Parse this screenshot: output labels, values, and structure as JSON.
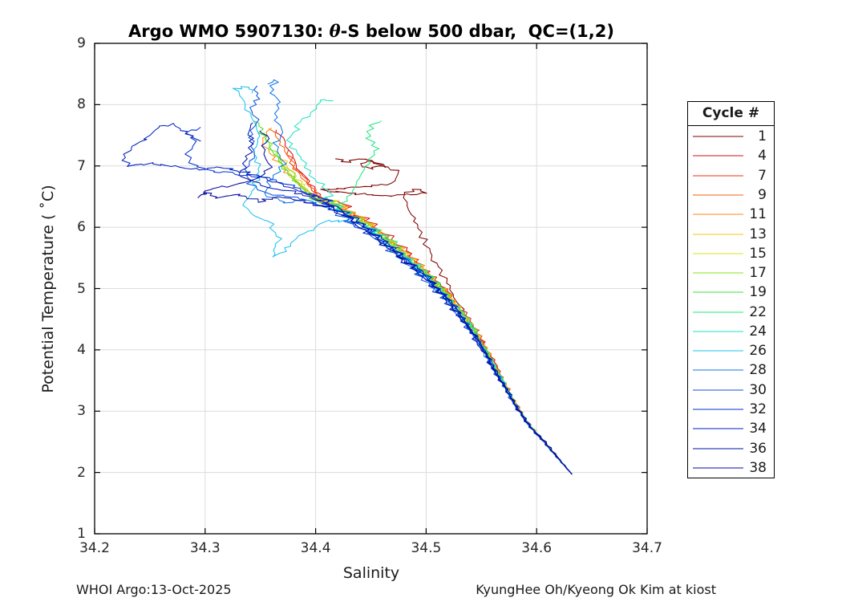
{
  "title": {
    "pre": "Argo WMO 5907130: ",
    "theta": "θ",
    "post": "-S below 500 dbar,  QC=(1,2)"
  },
  "axes": {
    "xlabel": "Salinity",
    "ylabel": "Potential Temperature ( ˚C)",
    "xtick_labels": [
      "34.2",
      "34.3",
      "34.4",
      "34.5",
      "34.6",
      "34.7"
    ],
    "ytick_labels": [
      "1",
      "2",
      "3",
      "4",
      "5",
      "6",
      "7",
      "8",
      "9"
    ]
  },
  "footer": {
    "left": "WHOI Argo:13-Oct-2025",
    "right": "KyungHee Oh/Kyeong Ok Kim at kiost"
  },
  "legend": {
    "title": "Cycle #"
  },
  "colors": {
    "grid": "#DBDBDB",
    "axis": "#000000",
    "tick_text": "#262626"
  },
  "chart_data": {
    "type": "line",
    "title": "Argo WMO 5907130: θ-S below 500 dbar, QC=(1,2)",
    "xlabel": "Salinity",
    "ylabel": "Potential Temperature (˚C)",
    "xlim": [
      34.2,
      34.7
    ],
    "ylim": [
      1,
      9
    ],
    "xticks": [
      34.2,
      34.3,
      34.4,
      34.5,
      34.6,
      34.7
    ],
    "yticks": [
      1,
      2,
      3,
      4,
      5,
      6,
      7,
      8,
      9
    ],
    "grid": true,
    "legend_title": "Cycle #",
    "legend_position": "right-outside",
    "convergence_point": {
      "salinity": 34.632,
      "theta": 1.97
    },
    "backbone_s_theta": [
      [
        34.632,
        1.97
      ],
      [
        34.621,
        2.2
      ],
      [
        34.607,
        2.5
      ],
      [
        34.592,
        2.8
      ],
      [
        34.581,
        3.1
      ],
      [
        34.572,
        3.4
      ],
      [
        34.562,
        3.7
      ],
      [
        34.553,
        4.0
      ],
      [
        34.543,
        4.3
      ],
      [
        34.531,
        4.6
      ],
      [
        34.517,
        4.9
      ],
      [
        34.501,
        5.2
      ],
      [
        34.483,
        5.5
      ],
      [
        34.462,
        5.8
      ],
      [
        34.447,
        6.0
      ],
      [
        34.43,
        6.2
      ],
      [
        34.413,
        6.4
      ],
      [
        34.396,
        6.6
      ]
    ],
    "series": [
      {
        "name": "1",
        "color": "#7F0000",
        "band_offset": 0.004,
        "tail": [
          [
            34.545,
            4.35
          ],
          [
            34.535,
            4.6
          ],
          [
            34.527,
            4.85
          ],
          [
            34.518,
            5.1
          ],
          [
            34.51,
            5.35
          ],
          [
            34.503,
            5.6
          ],
          [
            34.497,
            5.85
          ],
          [
            34.49,
            6.1
          ],
          [
            34.483,
            6.35
          ],
          [
            34.478,
            6.55
          ],
          [
            34.49,
            6.62
          ],
          [
            34.5,
            6.56
          ],
          [
            34.47,
            6.52
          ],
          [
            34.43,
            6.55
          ],
          [
            34.405,
            6.62
          ],
          [
            34.44,
            6.66
          ],
          [
            34.468,
            6.7
          ],
          [
            34.476,
            6.9
          ],
          [
            34.46,
            7.0
          ],
          [
            34.45,
            6.95
          ],
          [
            34.44,
            7.02
          ],
          [
            34.452,
            7.08
          ],
          [
            34.462,
            6.98
          ],
          [
            34.452,
            7.1
          ],
          [
            34.44,
            7.12
          ],
          [
            34.43,
            7.06
          ],
          [
            34.42,
            7.1
          ]
        ]
      },
      {
        "name": "4",
        "color": "#D6100C",
        "band_offset": 0.008,
        "tail": [
          [
            34.408,
            6.45
          ],
          [
            34.395,
            6.7
          ],
          [
            34.385,
            6.95
          ],
          [
            34.378,
            7.2
          ],
          [
            34.37,
            7.45
          ],
          [
            34.363,
            7.6
          ]
        ]
      },
      {
        "name": "7",
        "color": "#EF3212",
        "band_offset": 0.007,
        "tail": [
          [
            34.406,
            6.45
          ],
          [
            34.392,
            6.72
          ],
          [
            34.38,
            7.0
          ],
          [
            34.372,
            7.25
          ]
        ]
      },
      {
        "name": "9",
        "color": "#F95F0E",
        "band_offset": 0.006,
        "tail": [
          [
            34.405,
            6.45
          ],
          [
            34.39,
            6.75
          ],
          [
            34.378,
            7.05
          ],
          [
            34.368,
            7.35
          ],
          [
            34.36,
            7.6
          ]
        ]
      },
      {
        "name": "11",
        "color": "#FA8B13",
        "band_offset": 0.005,
        "tail": [
          [
            34.404,
            6.4
          ],
          [
            34.388,
            6.65
          ],
          [
            34.374,
            6.9
          ],
          [
            34.362,
            7.15
          ],
          [
            34.352,
            7.4
          ],
          [
            34.358,
            7.62
          ]
        ]
      },
      {
        "name": "13",
        "color": "#F8C30E",
        "band_offset": 0.004,
        "tail": [
          [
            34.402,
            6.45
          ],
          [
            34.388,
            6.7
          ],
          [
            34.376,
            6.95
          ],
          [
            34.366,
            7.18
          ]
        ]
      },
      {
        "name": "15",
        "color": "#D6E41E",
        "band_offset": 0.003,
        "tail": [
          [
            34.402,
            6.42
          ],
          [
            34.387,
            6.68
          ],
          [
            34.374,
            6.95
          ],
          [
            34.363,
            7.22
          ]
        ]
      },
      {
        "name": "17",
        "color": "#86E71A",
        "band_offset": 0.002,
        "tail": [
          [
            34.4,
            6.45
          ],
          [
            34.384,
            6.75
          ],
          [
            34.37,
            7.05
          ],
          [
            34.358,
            7.35
          ],
          [
            34.352,
            7.55
          ]
        ]
      },
      {
        "name": "19",
        "color": "#42E034",
        "band_offset": 0.001,
        "tail": [
          [
            34.4,
            6.42
          ],
          [
            34.385,
            6.72
          ],
          [
            34.37,
            7.02
          ],
          [
            34.358,
            7.32
          ],
          [
            34.35,
            7.6
          ],
          [
            34.345,
            7.75
          ]
        ]
      },
      {
        "name": "22",
        "color": "#1FE87F",
        "band_offset": 0.004,
        "tail": [
          [
            34.42,
            6.3
          ],
          [
            34.43,
            6.55
          ],
          [
            34.44,
            6.8
          ],
          [
            34.448,
            7.05
          ],
          [
            34.455,
            7.3
          ],
          [
            34.447,
            7.5
          ],
          [
            34.452,
            7.65
          ],
          [
            34.46,
            7.75
          ]
        ]
      },
      {
        "name": "24",
        "color": "#1FE4C2",
        "band_offset": 0.0,
        "tail": [
          [
            34.415,
            6.5
          ],
          [
            34.4,
            6.8
          ],
          [
            34.388,
            7.1
          ],
          [
            34.376,
            7.35
          ],
          [
            34.382,
            7.6
          ],
          [
            34.392,
            7.82
          ],
          [
            34.4,
            8.0
          ],
          [
            34.408,
            8.1
          ],
          [
            34.415,
            8.06
          ]
        ]
      },
      {
        "name": "26",
        "color": "#1BC2F0",
        "band_offset": -0.004,
        "tail": [
          [
            34.41,
            6.1
          ],
          [
            34.385,
            5.85
          ],
          [
            34.37,
            5.6
          ],
          [
            34.36,
            5.5
          ],
          [
            34.368,
            5.8
          ],
          [
            34.36,
            6.05
          ],
          [
            34.345,
            6.2
          ],
          [
            34.335,
            6.35
          ],
          [
            34.342,
            6.6
          ],
          [
            34.35,
            6.9
          ],
          [
            34.344,
            7.2
          ],
          [
            34.35,
            7.5
          ],
          [
            34.342,
            7.8
          ],
          [
            34.335,
            8.05
          ],
          [
            34.327,
            8.25
          ],
          [
            34.336,
            8.3
          ],
          [
            34.345,
            8.2
          ]
        ]
      },
      {
        "name": "28",
        "color": "#0F74E8",
        "band_offset": -0.006,
        "tail": [
          [
            34.41,
            6.3
          ],
          [
            34.39,
            6.45
          ],
          [
            34.37,
            6.4
          ],
          [
            34.355,
            6.55
          ],
          [
            34.36,
            6.8
          ],
          [
            34.37,
            7.05
          ],
          [
            34.363,
            7.3
          ],
          [
            34.37,
            7.55
          ],
          [
            34.363,
            7.8
          ],
          [
            34.368,
            8.05
          ],
          [
            34.36,
            8.25
          ],
          [
            34.365,
            8.4
          ],
          [
            34.357,
            8.35
          ]
        ]
      },
      {
        "name": "30",
        "color": "#0C50DC",
        "band_offset": -0.008,
        "tail": [
          [
            34.405,
            6.35
          ],
          [
            34.38,
            6.5
          ],
          [
            34.355,
            6.55
          ],
          [
            34.34,
            6.7
          ],
          [
            34.335,
            6.95
          ],
          [
            34.345,
            7.2
          ],
          [
            34.34,
            7.45
          ],
          [
            34.348,
            7.7
          ],
          [
            34.342,
            7.95
          ],
          [
            34.35,
            8.15
          ],
          [
            34.344,
            8.3
          ]
        ]
      },
      {
        "name": "32",
        "color": "#0132D1",
        "band_offset": -0.003,
        "tail": [
          [
            34.4,
            6.5
          ],
          [
            34.378,
            6.68
          ],
          [
            34.355,
            6.8
          ],
          [
            34.33,
            6.86
          ],
          [
            34.305,
            6.92
          ],
          [
            34.29,
            7.0
          ],
          [
            34.284,
            7.2
          ],
          [
            34.29,
            7.4
          ],
          [
            34.285,
            7.55
          ],
          [
            34.296,
            7.62
          ]
        ]
      },
      {
        "name": "34",
        "color": "#0122C2",
        "band_offset": -0.005,
        "tail": [
          [
            34.4,
            6.5
          ],
          [
            34.372,
            6.68
          ],
          [
            34.345,
            6.85
          ],
          [
            34.318,
            6.98
          ],
          [
            34.295,
            6.95
          ],
          [
            34.27,
            7.0
          ],
          [
            34.25,
            7.04
          ],
          [
            34.232,
            7.0
          ],
          [
            34.226,
            7.15
          ],
          [
            34.234,
            7.32
          ],
          [
            34.248,
            7.45
          ],
          [
            34.256,
            7.62
          ],
          [
            34.27,
            7.68
          ],
          [
            34.282,
            7.55
          ],
          [
            34.295,
            7.42
          ]
        ]
      },
      {
        "name": "36",
        "color": "#0113AF",
        "band_offset": -0.002,
        "tail": [
          [
            34.4,
            6.45
          ],
          [
            34.375,
            6.6
          ],
          [
            34.35,
            6.68
          ],
          [
            34.332,
            6.85
          ],
          [
            34.338,
            7.1
          ],
          [
            34.344,
            7.35
          ],
          [
            34.338,
            7.58
          ],
          [
            34.344,
            7.72
          ]
        ]
      },
      {
        "name": "38",
        "color": "#040BA1",
        "band_offset": -0.007,
        "tail": [
          [
            34.405,
            6.35
          ],
          [
            34.385,
            6.45
          ],
          [
            34.365,
            6.5
          ],
          [
            34.348,
            6.42
          ],
          [
            34.33,
            6.55
          ],
          [
            34.312,
            6.48
          ],
          [
            34.3,
            6.58
          ],
          [
            34.293,
            6.48
          ],
          [
            34.305,
            6.62
          ],
          [
            34.325,
            6.68
          ],
          [
            34.345,
            6.78
          ],
          [
            34.358,
            6.98
          ],
          [
            34.352,
            7.25
          ],
          [
            34.358,
            7.45
          ],
          [
            34.35,
            7.58
          ]
        ]
      }
    ]
  }
}
